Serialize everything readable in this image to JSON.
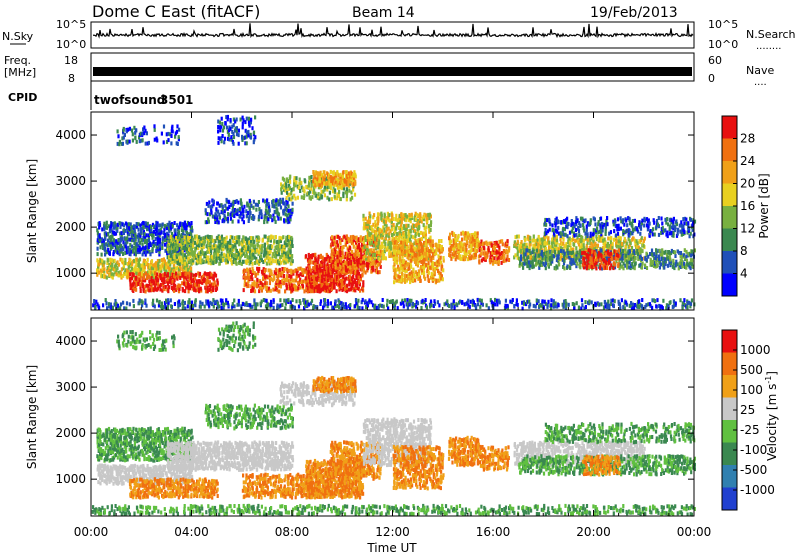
{
  "header": {
    "title": "Dome C East (fitACF)",
    "beam": "Beam 14",
    "date": "19/Feb/2013"
  },
  "chart_data": [
    {
      "type": "line",
      "panel": "noise",
      "left_label": "N.Sky",
      "right_label": "N.Search",
      "left_ticks": [
        "10^5",
        "10^0"
      ],
      "right_ticks": [
        "10^5",
        "10^0"
      ],
      "right_legend": "........"
    },
    {
      "type": "bar",
      "panel": "frequency",
      "left_label_line1": "Freq.",
      "left_label_line2": "[MHz]",
      "right_label": "Nave",
      "left_ticks": [
        "18",
        "8"
      ],
      "right_ticks": [
        "60",
        "0"
      ],
      "right_legend": "....",
      "ylim": [
        8,
        18
      ]
    },
    {
      "type": "table",
      "panel": "cpid",
      "label": "CPID",
      "program": "twofsound",
      "cpid_value": "3501"
    },
    {
      "type": "heatmap",
      "panel": "power",
      "ylabel": "Slant Range [km]",
      "y_ticks": [
        "4000",
        "3000",
        "2000",
        "1000"
      ],
      "ylim": [
        200,
        4500
      ],
      "colorbar_label": "Power [dB]",
      "colorbar_ticks": [
        "28",
        "24",
        "20",
        "16",
        "12",
        "8",
        "4"
      ],
      "colors": [
        "#0000ff",
        "#2050b8",
        "#3a8850",
        "#78b040",
        "#e8d020",
        "#f0a018",
        "#f07010",
        "#e81010"
      ]
    },
    {
      "type": "heatmap",
      "panel": "velocity",
      "ylabel": "Slant Range [km]",
      "y_ticks": [
        "4000",
        "3000",
        "2000",
        "1000"
      ],
      "ylim": [
        200,
        4500
      ],
      "colorbar_label": "Velocity [m s",
      "colorbar_label_sup": "-1",
      "colorbar_label_end": "]",
      "colorbar_ticks": [
        "1000",
        "500",
        "100",
        "25",
        "-25",
        "-100",
        "-500",
        "-1000"
      ],
      "colors": [
        "#2040d0",
        "#3080b0",
        "#3a8850",
        "#60c040",
        "#c8c8c8",
        "#f0a018",
        "#f07010",
        "#e81010"
      ]
    }
  ],
  "xaxis": {
    "label": "Time UT",
    "ticks": [
      "00:00",
      "04:00",
      "08:00",
      "12:00",
      "16:00",
      "20:00",
      "00:00"
    ],
    "hours": [
      0,
      4,
      8,
      12,
      16,
      20,
      24
    ]
  }
}
